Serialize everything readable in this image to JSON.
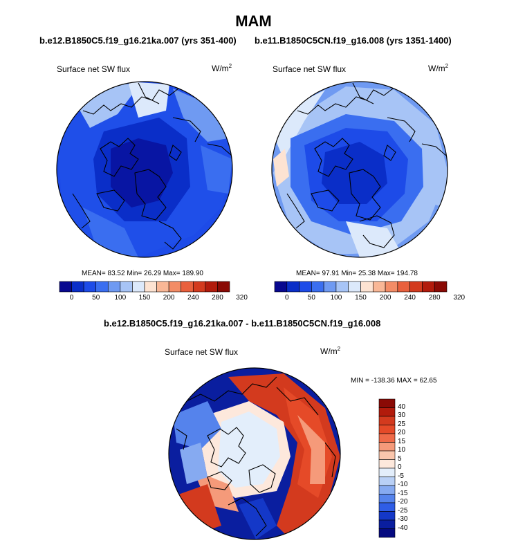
{
  "page_title": "MAM",
  "case_a": "b.e12.B1850C5.f19_g16.21ka.007 (yrs 351-400)",
  "case_b": "b.e11.B1850C5CN.f19_g16.008 (yrs 1351-1400)",
  "diff_title": "b.e12.B1850C5.f19_g16.21ka.007 - b.e11.B1850C5CN.f19_g16.008",
  "panels": {
    "left": {
      "variable": "Surface net SW flux",
      "unit": "W/m",
      "unit_exp": "2",
      "stats": "MEAN=  83.52  Min=  26.29  Max= 189.90"
    },
    "right": {
      "variable": "Surface net SW flux",
      "unit": "W/m",
      "unit_exp": "2",
      "stats": "MEAN=  97.91  Min=  25.38  Max= 194.78"
    },
    "diff": {
      "variable": "Surface net SW flux",
      "unit": "W/m",
      "unit_exp": "2",
      "stats": "MIN = -138.36 MAX =  62.65"
    }
  },
  "colorbar_abs": {
    "ticks": [
      "0",
      "50",
      "100",
      "150",
      "200",
      "240",
      "280",
      "320"
    ],
    "colors": [
      "#08088f",
      "#0a2ec8",
      "#1d4be8",
      "#3a6ef0",
      "#6f9af2",
      "#a7c4f6",
      "#dce9fb",
      "#fde3d2",
      "#f9b796",
      "#f38c66",
      "#e9603d",
      "#d33a1e",
      "#b21b0c",
      "#8a0a05"
    ]
  },
  "colorbar_diff": {
    "ticks": [
      "40",
      "30",
      "25",
      "20",
      "15",
      "10",
      "5",
      "0",
      "-5",
      "-10",
      "-15",
      "-20",
      "-25",
      "-30",
      "-40"
    ],
    "colors": [
      "#8a0a05",
      "#b21b0c",
      "#d33a1e",
      "#e54a28",
      "#ef6a48",
      "#f59a7a",
      "#fac6ac",
      "#fde8dc",
      "#e3eefb",
      "#b9d0f6",
      "#86aaf1",
      "#5583ec",
      "#2f5de6",
      "#1438c8",
      "#0a1e9f",
      "#050a80"
    ]
  }
}
